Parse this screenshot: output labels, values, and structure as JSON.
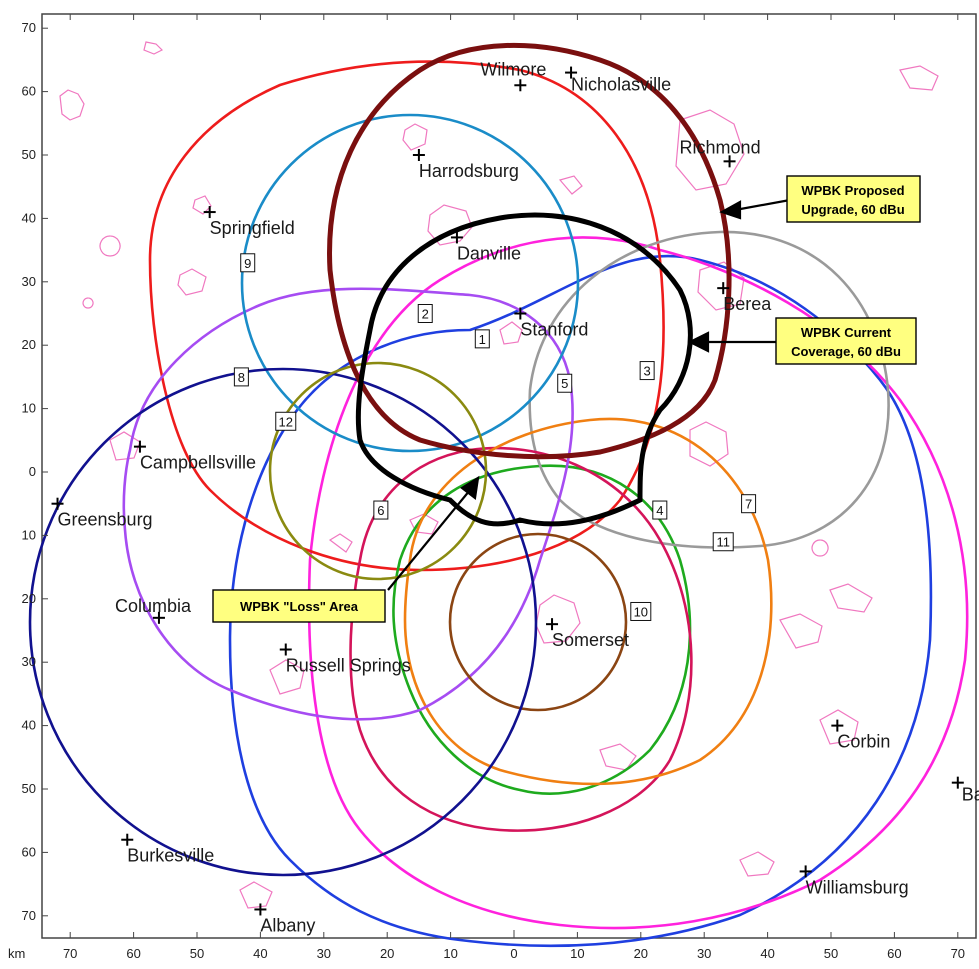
{
  "axis": {
    "unit": "km",
    "x_ticks": [
      "70",
      "60",
      "50",
      "40",
      "30",
      "20",
      "10",
      "0",
      "10",
      "20",
      "30",
      "40",
      "50",
      "60",
      "70"
    ],
    "y_ticks": [
      "70",
      "60",
      "50",
      "40",
      "30",
      "20",
      "10",
      "0",
      "10",
      "20",
      "30",
      "40",
      "50",
      "60",
      "70"
    ]
  },
  "cities": [
    {
      "name": "Wilmore",
      "x": 1,
      "y": 61
    },
    {
      "name": "Nicholasville",
      "x": 9,
      "y": 63
    },
    {
      "name": "Richmond",
      "x": 34,
      "y": 49
    },
    {
      "name": "Harrodsburg",
      "x": -15,
      "y": 50
    },
    {
      "name": "Springfield",
      "x": -48,
      "y": 41
    },
    {
      "name": "Danville",
      "x": -9,
      "y": 37
    },
    {
      "name": "Berea",
      "x": 33,
      "y": 29
    },
    {
      "name": "Stanford",
      "x": 1,
      "y": 25
    },
    {
      "name": "Campbellsville",
      "x": -59,
      "y": 4
    },
    {
      "name": "Greensburg",
      "x": -72,
      "y": -5
    },
    {
      "name": "Columbia",
      "x": -56,
      "y": -23
    },
    {
      "name": "Somerset",
      "x": 6,
      "y": -24
    },
    {
      "name": "Russell Springs",
      "x": -36,
      "y": -28
    },
    {
      "name": "Corbin",
      "x": 51,
      "y": -40
    },
    {
      "name": "Ba",
      "x": 70,
      "y": -49
    },
    {
      "name": "Burkesville",
      "x": -61,
      "y": -58
    },
    {
      "name": "Williamsburg",
      "x": 46,
      "y": -63
    },
    {
      "name": "Albany",
      "x": -40,
      "y": -69
    }
  ],
  "contours": [
    {
      "label": "1",
      "color": "#1f3fe0"
    },
    {
      "label": "2",
      "color": "#ff22dd"
    },
    {
      "label": "3",
      "color": "#ee1c1c"
    },
    {
      "label": "4",
      "color": "#1eaa1e"
    },
    {
      "label": "5",
      "color": "#9a9a9a"
    },
    {
      "label": "6",
      "color": "#d4145a"
    },
    {
      "label": "7",
      "color": "#f07f12"
    },
    {
      "label": "8",
      "color": "#a64cf2"
    },
    {
      "label": "9",
      "color": "#1a8cc8"
    },
    {
      "label": "10",
      "color": "#8b4513"
    },
    {
      "label": "11",
      "color": "#11118f"
    },
    {
      "label": "12",
      "color": "#8a8a10"
    }
  ],
  "callouts": {
    "proposed_line1": "WPBK Proposed",
    "proposed_line2": "Upgrade, 60 dBu",
    "current_line1": "WPBK Current",
    "current_line2": "Coverage, 60 dBu",
    "loss": "WPBK \"Loss\" Area"
  },
  "colors": {
    "proposed": "#7a0f0f",
    "current": "#000000",
    "callout_fill": "#ffff80",
    "town_outline": "#f078c0"
  }
}
